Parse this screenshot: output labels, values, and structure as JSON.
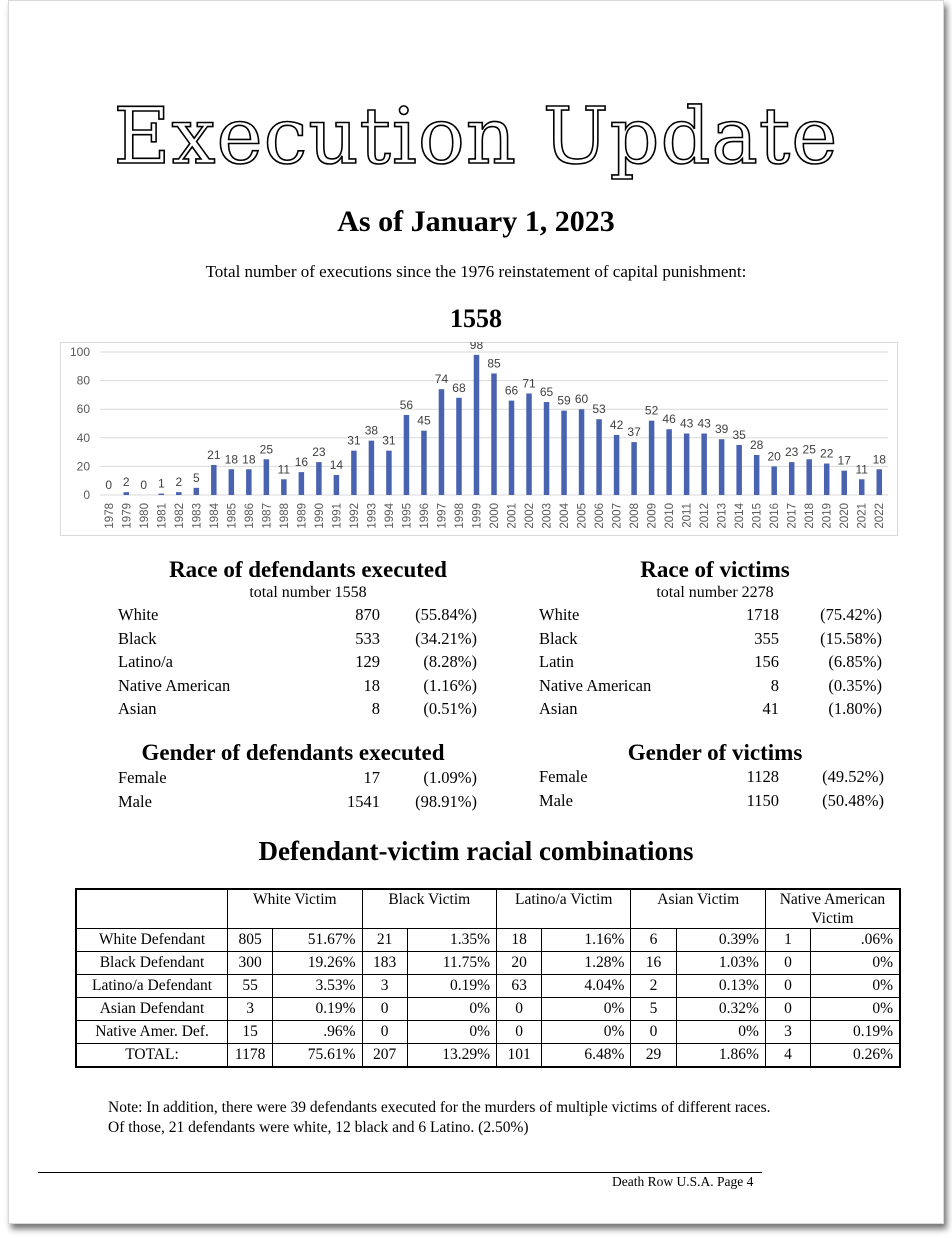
{
  "title": "Execution Update",
  "subtitle": "As of January 1, 2023",
  "intro": "Total number of executions since the 1976 reinstatement of capital punishment:",
  "total": "1558",
  "chart_data": {
    "type": "bar",
    "title": "",
    "xlabel": "",
    "ylabel": "",
    "ylim": [
      0,
      100
    ],
    "yticks": [
      0,
      20,
      40,
      60,
      80,
      100
    ],
    "grid": true,
    "bar_color": "#4a63b0",
    "categories": [
      "1978",
      "1979",
      "1980",
      "1981",
      "1982",
      "1983",
      "1984",
      "1985",
      "1986",
      "1987",
      "1988",
      "1989",
      "1990",
      "1991",
      "1992",
      "1993",
      "1994",
      "1995",
      "1996",
      "1997",
      "1998",
      "1999",
      "2000",
      "2001",
      "2002",
      "2003",
      "2004",
      "2005",
      "2006",
      "2007",
      "2008",
      "2009",
      "2010",
      "2011",
      "2012",
      "2013",
      "2014",
      "2015",
      "2016",
      "2017",
      "2018",
      "2019",
      "2020",
      "2021",
      "2022"
    ],
    "values": [
      0,
      2,
      0,
      1,
      2,
      5,
      21,
      18,
      18,
      25,
      11,
      16,
      23,
      14,
      31,
      38,
      31,
      56,
      45,
      74,
      68,
      98,
      85,
      66,
      71,
      65,
      59,
      60,
      53,
      42,
      37,
      52,
      46,
      43,
      43,
      39,
      35,
      28,
      20,
      23,
      25,
      22,
      17,
      11,
      18
    ]
  },
  "race_defendants": {
    "heading": "Race of defendants executed",
    "sub": "total number 1558",
    "rows": [
      {
        "label": "White",
        "count": "870",
        "pct": "(55.84%)"
      },
      {
        "label": "Black",
        "count": "533",
        "pct": "(34.21%)"
      },
      {
        "label": "Latino/a",
        "count": "129",
        "pct": "(8.28%)"
      },
      {
        "label": "Native American",
        "count": "18",
        "pct": "(1.16%)"
      },
      {
        "label": "Asian",
        "count": "8",
        "pct": "(0.51%)"
      }
    ]
  },
  "race_victims": {
    "heading": "Race of victims",
    "sub": "total number 2278",
    "rows": [
      {
        "label": "White",
        "count": "1718",
        "pct": "(75.42%)"
      },
      {
        "label": "Black",
        "count": "355",
        "pct": "(15.58%)"
      },
      {
        "label": "Latin",
        "count": "156",
        "pct": "(6.85%)"
      },
      {
        "label": "Native American",
        "count": "8",
        "pct": "(0.35%)"
      },
      {
        "label": "Asian",
        "count": "41",
        "pct": "(1.80%)"
      }
    ]
  },
  "gender_defendants": {
    "heading": "Gender of defendants executed",
    "rows": [
      {
        "label": "Female",
        "count": "17",
        "pct": "(1.09%)"
      },
      {
        "label": "Male",
        "count": "1541",
        "pct": "(98.91%)"
      }
    ]
  },
  "gender_victims": {
    "heading": "Gender of victims",
    "rows": [
      {
        "label": "Female",
        "count": "1128",
        "pct": "(49.52%)"
      },
      {
        "label": "Male",
        "count": "1150",
        "pct": "(50.48%)"
      }
    ]
  },
  "combinations": {
    "heading": "Defendant-victim racial combinations",
    "columns": [
      "White Victim",
      "Black Victim",
      "Latino/a Victim",
      "Asian Victim",
      "Native American Victim"
    ],
    "rows": [
      {
        "label": "White Defendant",
        "cells": [
          "805",
          "51.67%",
          "21",
          "1.35%",
          "18",
          "1.16%",
          "6",
          "0.39%",
          "1",
          ".06%"
        ]
      },
      {
        "label": "Black Defendant",
        "cells": [
          "300",
          "19.26%",
          "183",
          "11.75%",
          "20",
          "1.28%",
          "16",
          "1.03%",
          "0",
          "0%"
        ]
      },
      {
        "label": "Latino/a Defendant",
        "cells": [
          "55",
          "3.53%",
          "3",
          "0.19%",
          "63",
          "4.04%",
          "2",
          "0.13%",
          "0",
          "0%"
        ]
      },
      {
        "label": "Asian Defendant",
        "cells": [
          "3",
          "0.19%",
          "0",
          "0%",
          "0",
          "0%",
          "5",
          "0.32%",
          "0",
          "0%"
        ]
      },
      {
        "label": "Native Amer. Def.",
        "cells": [
          "15",
          ".96%",
          "0",
          "0%",
          "0",
          "0%",
          "0",
          "0%",
          "3",
          "0.19%"
        ]
      },
      {
        "label": "TOTAL:",
        "cells": [
          "1178",
          "75.61%",
          "207",
          "13.29%",
          "101",
          "6.48%",
          "29",
          "1.86%",
          "4",
          "0.26%"
        ]
      }
    ]
  },
  "note": {
    "line1": "Note: In addition, there were 39 defendants executed for the murders of multiple victims of different races.",
    "line2": "Of those, 21 defendants were white, 12 black and 6 Latino. (2.50%)"
  },
  "footer": "Death Row U.S.A. Page  4"
}
